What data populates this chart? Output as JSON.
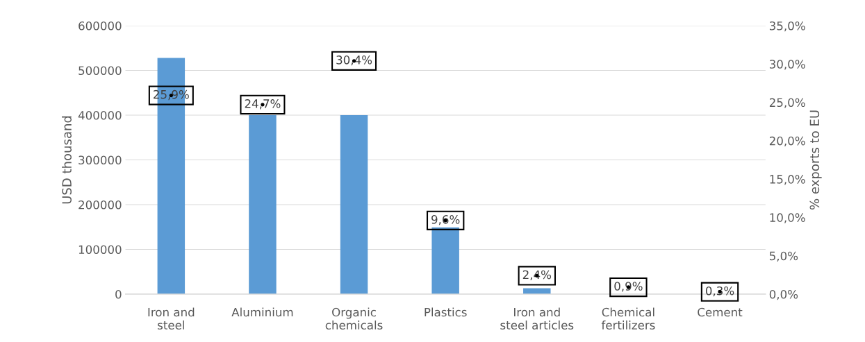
{
  "chart_data": {
    "type": "bar",
    "categories": [
      "Iron and\nsteel",
      "Aluminium",
      "Organic\nchemicals",
      "Plastics",
      "Iron and\nsteel articles",
      "Chemical\nfertilizers",
      "Cement"
    ],
    "series": [
      {
        "color": "#5b9bd5",
        "values": [
          528000,
          400000,
          400000,
          149000,
          13000,
          null,
          null
        ]
      },
      {
        "type": "scatter",
        "axis": "y2",
        "marker": "circle",
        "color": "#000000",
        "values": [
          25.9,
          24.7,
          30.4,
          9.6,
          2.4,
          0.9,
          0.3
        ],
        "value_labels": [
          "25,9%",
          "24,7%",
          "30,4%",
          "9,6%",
          "2,4%",
          "0,9%",
          "0,3%"
        ]
      }
    ],
    "ylabel": "USD thousand",
    "y2label": "% exports to EU",
    "ylim": [
      0,
      600000
    ],
    "yticks": [
      0,
      100000,
      200000,
      300000,
      400000,
      500000,
      600000
    ],
    "y2lim": [
      0,
      35
    ],
    "y2ticks": [
      {
        "value": 0,
        "label": "0,0%"
      },
      {
        "value": 5,
        "label": "5,0%"
      },
      {
        "value": 10,
        "label": "10,0%"
      },
      {
        "value": 15,
        "label": "15,0%"
      },
      {
        "value": 20,
        "label": "20,0%"
      },
      {
        "value": 25,
        "label": "25,0%"
      },
      {
        "value": 30,
        "label": "30,0%"
      },
      {
        "value": 35,
        "label": "35,0%"
      }
    ],
    "grid": "y"
  }
}
